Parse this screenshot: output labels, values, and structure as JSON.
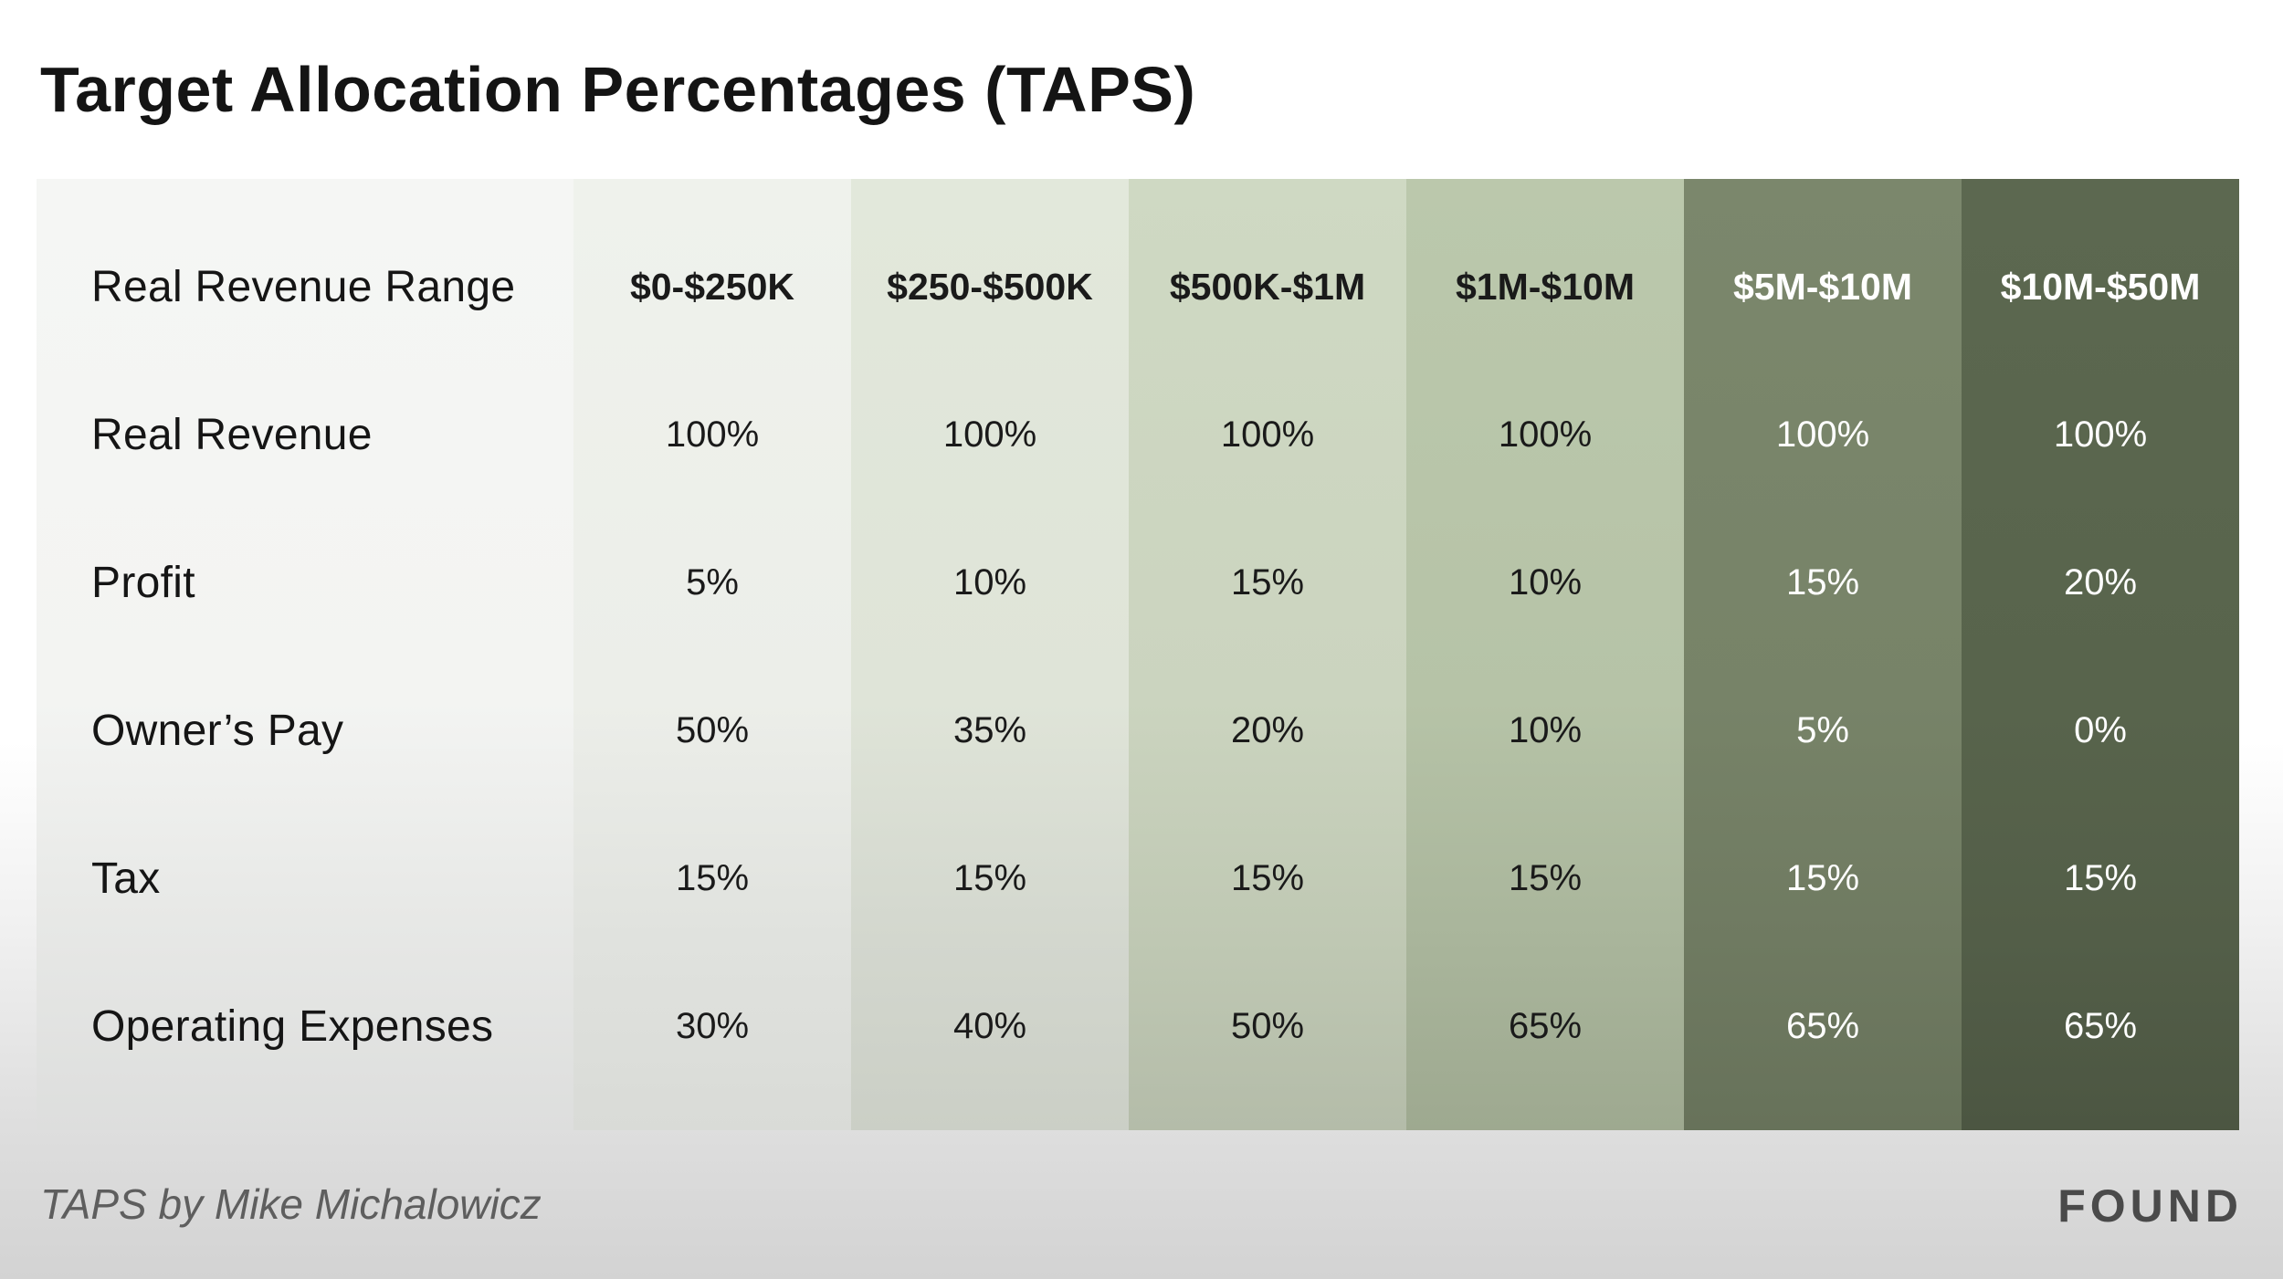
{
  "title": "Target Allocation Percentages (TAPS)",
  "table": {
    "row_labels": [
      "Real Revenue Range",
      "Real Revenue",
      "Profit",
      "Owner’s Pay",
      "Tax",
      "Operating Expenses"
    ],
    "tiers": [
      {
        "range": "$0-$250K",
        "real_revenue": "100%",
        "profit": "5%",
        "owners_pay": "50%",
        "tax": "15%",
        "opex": "30%"
      },
      {
        "range": "$250-$500K",
        "real_revenue": "100%",
        "profit": "10%",
        "owners_pay": "35%",
        "tax": "15%",
        "opex": "40%"
      },
      {
        "range": "$500K-$1M",
        "real_revenue": "100%",
        "profit": "15%",
        "owners_pay": "20%",
        "tax": "15%",
        "opex": "50%"
      },
      {
        "range": "$1M-$10M",
        "real_revenue": "100%",
        "profit": "10%",
        "owners_pay": "10%",
        "tax": "15%",
        "opex": "65%"
      },
      {
        "range": "$5M-$10M",
        "real_revenue": "100%",
        "profit": "15%",
        "owners_pay": "5%",
        "tax": "15%",
        "opex": "65%"
      },
      {
        "range": "$10M-$50M",
        "real_revenue": "100%",
        "profit": "20%",
        "owners_pay": "0%",
        "tax": "15%",
        "opex": "65%"
      }
    ]
  },
  "footer": {
    "credit": "TAPS by Mike Michalowicz",
    "logo_text": "FOUND"
  },
  "colors": {
    "tier_light": "#eff2ec",
    "tier_mid": "#bbc8ac",
    "tier_dark": "#5c6850"
  }
}
